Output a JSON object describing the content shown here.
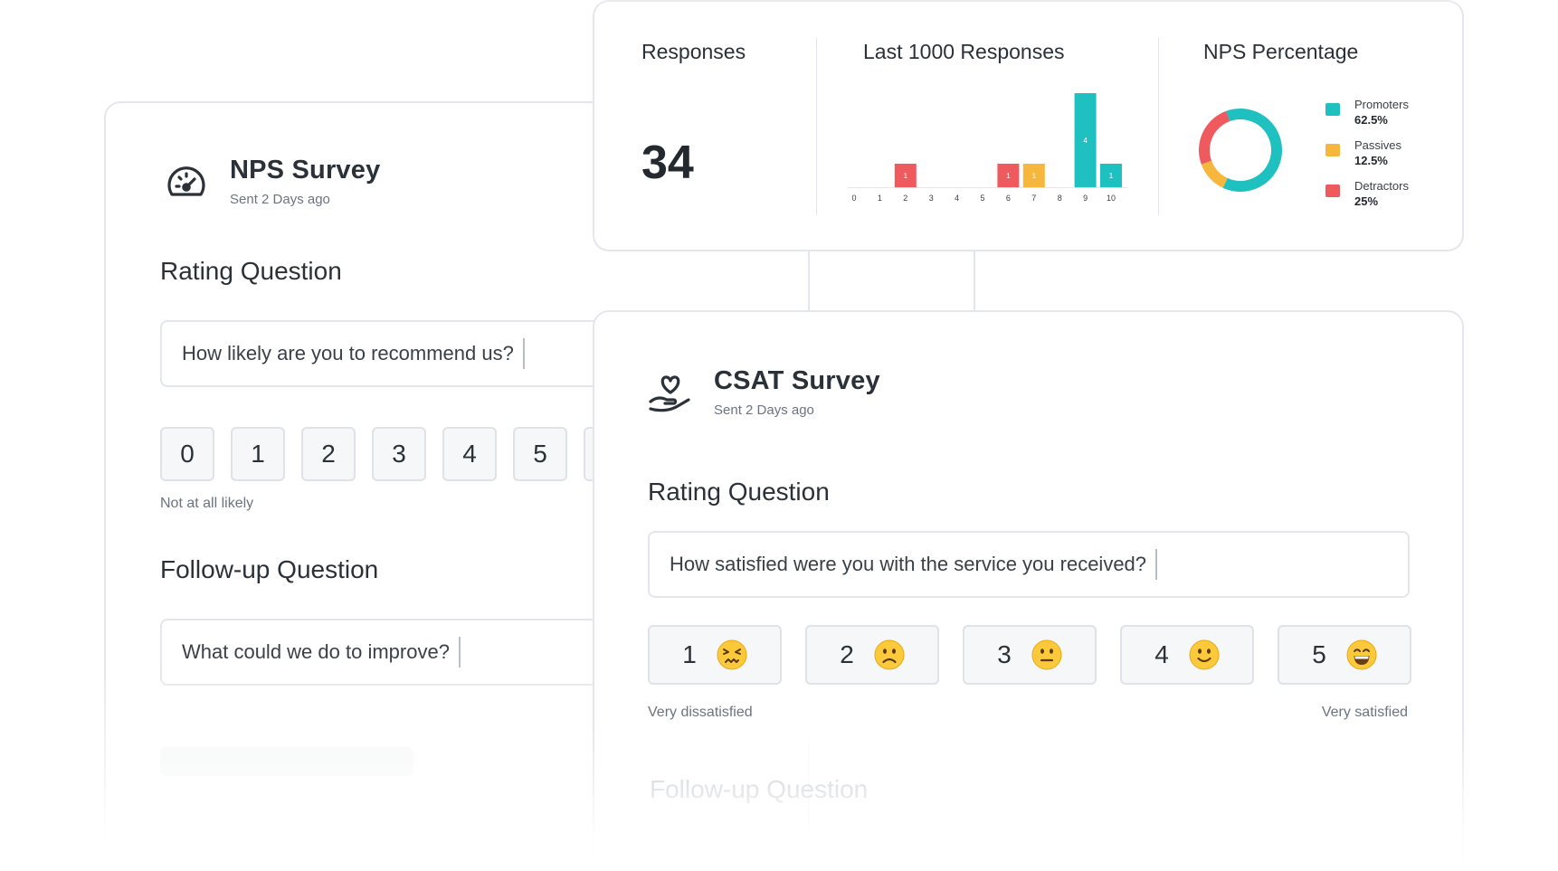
{
  "nps": {
    "title": "NPS Survey",
    "sent": "Sent 2 Days ago",
    "rating_title": "Rating Question",
    "rating_question": "How likely are you to recommend us?",
    "scale": [
      "0",
      "1",
      "2",
      "3",
      "4",
      "5"
    ],
    "low_label": "Not at all likely",
    "followup_title": "Follow-up Question",
    "followup_question": "What could we do to improve?",
    "icon": "speedometer-icon"
  },
  "stats": {
    "responses_title": "Responses",
    "responses_count": "34",
    "histogram_title": "Last 1000 Responses",
    "nps_title": "NPS Percentage",
    "legend": [
      {
        "name": "Promoters",
        "value": "62.5%",
        "color": "#1ec0c0"
      },
      {
        "name": "Passives",
        "value": "12.5%",
        "color": "#f6b73c"
      },
      {
        "name": "Detractors",
        "value": "25%",
        "color": "#ef5a5f"
      }
    ]
  },
  "chart_data": [
    {
      "type": "bar",
      "title": "Last 1000 Responses",
      "categories": [
        "0",
        "1",
        "2",
        "3",
        "4",
        "5",
        "6",
        "7",
        "8",
        "9",
        "10"
      ],
      "values": [
        0,
        0,
        1,
        0,
        0,
        0,
        1,
        1,
        0,
        4,
        1
      ],
      "colors": [
        "#ef5a5f",
        "#ef5a5f",
        "#ef5a5f",
        "#ef5a5f",
        "#ef5a5f",
        "#ef5a5f",
        "#ef5a5f",
        "#f6b73c",
        "#f6b73c",
        "#1ec0c0",
        "#1ec0c0"
      ],
      "ylim": [
        0,
        4
      ]
    },
    {
      "type": "pie",
      "title": "NPS Percentage",
      "labels": [
        "Promoters",
        "Passives",
        "Detractors"
      ],
      "values": [
        62.5,
        12.5,
        25
      ],
      "colors": [
        "#1ec0c0",
        "#f6b73c",
        "#ef5a5f"
      ],
      "donut": true
    }
  ],
  "csat": {
    "title": "CSAT Survey",
    "sent": "Sent 2 Days ago",
    "rating_title": "Rating Question",
    "rating_question": "How satisfied were you with the service you received?",
    "options": [
      {
        "label": "1",
        "emoji": "persevering-face-icon"
      },
      {
        "label": "2",
        "emoji": "slightly-frowning-face-icon"
      },
      {
        "label": "3",
        "emoji": "neutral-face-icon"
      },
      {
        "label": "4",
        "emoji": "slightly-smiling-face-icon"
      },
      {
        "label": "5",
        "emoji": "grinning-face-icon"
      }
    ],
    "low_label": "Very dissatisfied",
    "high_label": "Very satisfied",
    "followup_title": "Follow-up Question",
    "icon": "heart-in-hand-icon"
  }
}
